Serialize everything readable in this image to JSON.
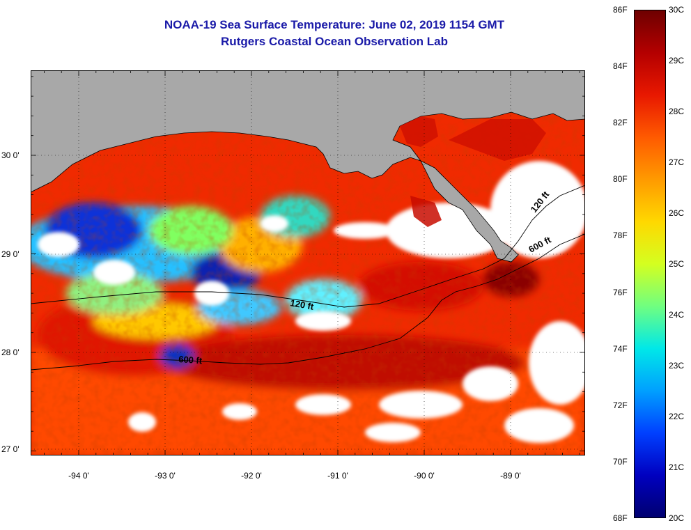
{
  "title": {
    "line1": "NOAA-19 Sea Surface Temperature:  June 02, 2019 1154 GMT",
    "line2": "Rutgers Coastal Ocean Observation Lab"
  },
  "map": {
    "lon_labels": [
      "-94 0'",
      "-93 0'",
      "-92 0'",
      "-91 0'",
      "-90 0'",
      "-89 0'"
    ],
    "lat_labels": [
      "30 0'",
      "29 0'",
      "28 0'",
      "27 0'"
    ],
    "contours": [
      {
        "label": "120 ft"
      },
      {
        "label": "600 ft"
      },
      {
        "label": "120 ft"
      },
      {
        "label": "600 ft"
      }
    ],
    "colors": {
      "land": "#a8a8a8",
      "cloud": "#ffffff",
      "contour": "#000000"
    }
  },
  "colorbar": {
    "fahrenheit": [
      "86F",
      "84F",
      "82F",
      "80F",
      "78F",
      "76F",
      "74F",
      "72F",
      "70F",
      "68F"
    ],
    "celsius": [
      "30C",
      "29C",
      "28C",
      "27C",
      "26C",
      "25C",
      "24C",
      "23C",
      "22C",
      "21C",
      "20C"
    ],
    "gradient": [
      "#6e0000",
      "#b40000",
      "#e81800",
      "#ff5a00",
      "#ff9a00",
      "#ffd800",
      "#d4ff20",
      "#70ff80",
      "#00e8e8",
      "#00a0ff",
      "#0040ff",
      "#0000c0",
      "#000070"
    ]
  }
}
